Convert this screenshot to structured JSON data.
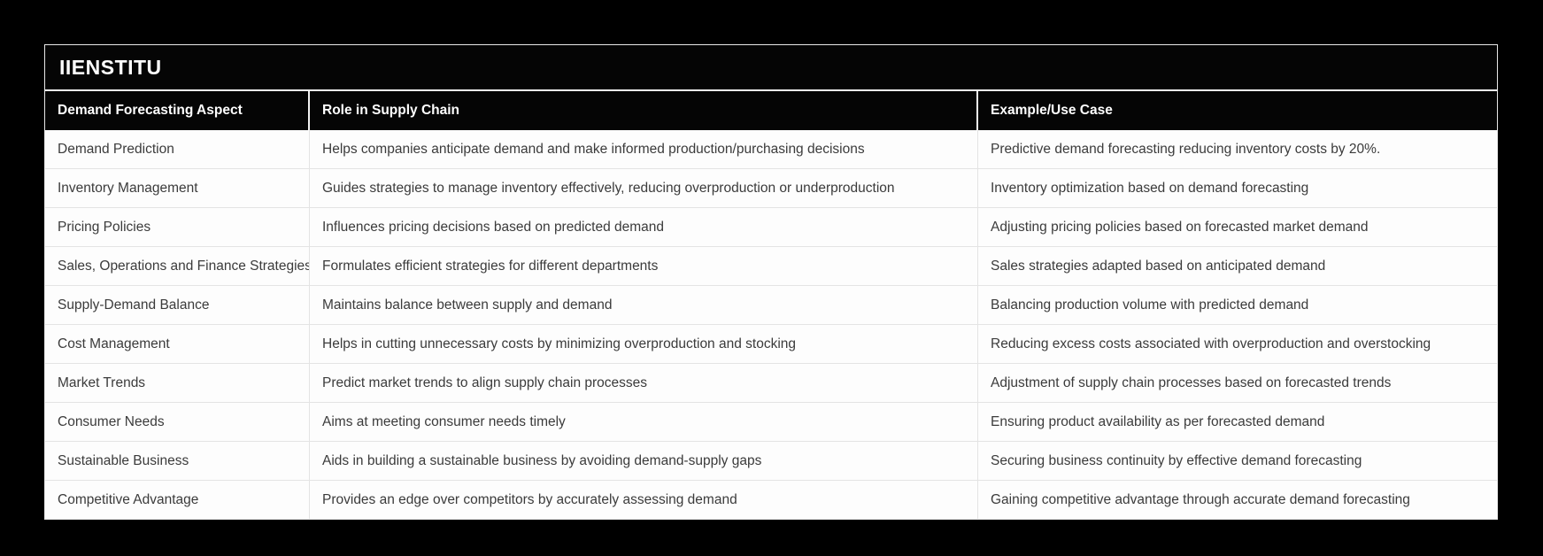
{
  "brand": {
    "title": "IIENSTITU"
  },
  "table": {
    "columns": [
      "Demand Forecasting Aspect",
      "Role in Supply Chain",
      "Example/Use Case"
    ],
    "rows": [
      [
        "Demand Prediction",
        "Helps companies anticipate demand and make informed production/purchasing decisions",
        "Predictive demand forecasting reducing inventory costs by 20%."
      ],
      [
        "Inventory Management",
        "Guides strategies to manage inventory effectively, reducing overproduction or underproduction",
        "Inventory optimization based on demand forecasting"
      ],
      [
        "Pricing Policies",
        "Influences pricing decisions based on predicted demand",
        "Adjusting pricing policies based on forecasted market demand"
      ],
      [
        "Sales, Operations and Finance Strategies",
        "Formulates efficient strategies for different departments",
        "Sales strategies adapted based on anticipated demand"
      ],
      [
        "Supply-Demand Balance",
        "Maintains balance between supply and demand",
        "Balancing production volume with predicted demand"
      ],
      [
        "Cost Management",
        "Helps in cutting unnecessary costs by minimizing overproduction and stocking",
        "Reducing excess costs associated with overproduction and overstocking"
      ],
      [
        "Market Trends",
        "Predict market trends to align supply chain processes",
        "Adjustment of supply chain processes based on forecasted trends"
      ],
      [
        "Consumer Needs",
        "Aims at meeting consumer needs timely",
        "Ensuring product availability as per forecasted demand"
      ],
      [
        "Sustainable Business",
        "Aids in building a sustainable business by avoiding demand-supply gaps",
        "Securing business continuity by effective demand forecasting"
      ],
      [
        "Competitive Advantage",
        "Provides an edge over competitors by accurately assessing demand",
        "Gaining competitive advantage through accurate demand forecasting"
      ]
    ]
  },
  "colors": {
    "background": "#000000",
    "header_bg": "#050505",
    "header_text": "#ffffff",
    "row_bg": "#fdfdfd",
    "row_text": "#3b3b3b",
    "divider": "#e4e4e4"
  },
  "chart_data": {
    "type": "table",
    "title": "IIENSTITU",
    "columns": [
      "Demand Forecasting Aspect",
      "Role in Supply Chain",
      "Example/Use Case"
    ],
    "rows": [
      [
        "Demand Prediction",
        "Helps companies anticipate demand and make informed production/purchasing decisions",
        "Predictive demand forecasting reducing inventory costs by 20%."
      ],
      [
        "Inventory Management",
        "Guides strategies to manage inventory effectively, reducing overproduction or underproduction",
        "Inventory optimization based on demand forecasting"
      ],
      [
        "Pricing Policies",
        "Influences pricing decisions based on predicted demand",
        "Adjusting pricing policies based on forecasted market demand"
      ],
      [
        "Sales, Operations and Finance Strategies",
        "Formulates efficient strategies for different departments",
        "Sales strategies adapted based on anticipated demand"
      ],
      [
        "Supply-Demand Balance",
        "Maintains balance between supply and demand",
        "Balancing production volume with predicted demand"
      ],
      [
        "Cost Management",
        "Helps in cutting unnecessary costs by minimizing overproduction and stocking",
        "Reducing excess costs associated with overproduction and overstocking"
      ],
      [
        "Market Trends",
        "Predict market trends to align supply chain processes",
        "Adjustment of supply chain processes based on forecasted trends"
      ],
      [
        "Consumer Needs",
        "Aims at meeting consumer needs timely",
        "Ensuring product availability as per forecasted demand"
      ],
      [
        "Sustainable Business",
        "Aids in building a sustainable business by avoiding demand-supply gaps",
        "Securing business continuity by effective demand forecasting"
      ],
      [
        "Competitive Advantage",
        "Provides an edge over competitors by accurately assessing demand",
        "Gaining competitive advantage through accurate demand forecasting"
      ]
    ]
  }
}
